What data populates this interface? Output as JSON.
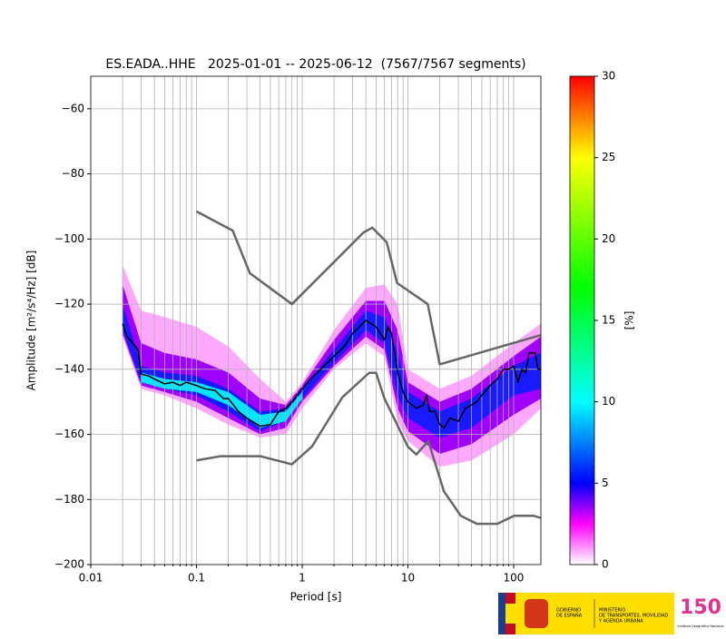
{
  "chart_data": {
    "type": "ppsd",
    "title": "ES.EADA..HHE   2025-01-01 -- 2025-06-12  (7567/7567 segments)",
    "xlabel": "Period [s]",
    "ylabel": "Amplitude [m²/s⁴/Hz] [dB]",
    "xscale": "log",
    "xlim": [
      0.01,
      181
    ],
    "ylim": [
      -200,
      -50
    ],
    "xticks": [
      0.01,
      0.1,
      1,
      10,
      100
    ],
    "xminorticks": [
      0.02,
      0.03,
      0.04,
      0.05,
      0.06,
      0.07,
      0.08,
      0.09,
      0.2,
      0.3,
      0.4,
      0.5,
      0.6,
      0.7,
      0.8,
      0.9,
      2,
      3,
      4,
      5,
      6,
      7,
      8,
      9,
      20,
      30,
      40,
      50,
      60,
      70,
      80,
      90
    ],
    "yticks": [
      {
        "value": -60,
        "label": "−60"
      },
      {
        "value": -80,
        "label": "−80"
      },
      {
        "value": -100,
        "label": "−100"
      },
      {
        "value": -120,
        "label": "−120"
      },
      {
        "value": -140,
        "label": "−140"
      },
      {
        "value": -160,
        "label": "−160"
      },
      {
        "value": -180,
        "label": "−180"
      },
      {
        "value": -200,
        "label": "−200"
      }
    ],
    "grid": true,
    "density": [
      {
        "color": "#ffa8ff",
        "x": [
          0.02,
          0.03,
          0.05,
          0.1,
          0.2,
          0.4,
          0.7,
          1,
          2,
          4,
          6,
          8,
          10,
          20,
          40,
          100,
          181
        ],
        "upper": [
          -108,
          -122,
          -124,
          -127,
          -133,
          -143,
          -150,
          -144,
          -128,
          -115,
          -114,
          -120,
          -140,
          -146,
          -142,
          -132,
          -126
        ],
        "lower": [
          -130,
          -146,
          -148,
          -152,
          -157,
          -161,
          -160,
          -152,
          -140,
          -132,
          -136,
          -156,
          -162,
          -170,
          -168,
          -160,
          -152
        ]
      },
      {
        "color": "#a000ff",
        "x": [
          0.02,
          0.03,
          0.05,
          0.1,
          0.2,
          0.4,
          0.7,
          1,
          2,
          4,
          6,
          8,
          10,
          20,
          40,
          100,
          181
        ],
        "upper": [
          -114,
          -132,
          -135,
          -137,
          -141,
          -149,
          -151,
          -145,
          -131,
          -119,
          -119,
          -128,
          -144,
          -150,
          -146,
          -136,
          -130
        ],
        "lower": [
          -129,
          -145,
          -147,
          -150,
          -155,
          -160,
          -158,
          -150,
          -139,
          -130,
          -134,
          -152,
          -159,
          -166,
          -163,
          -154,
          -149
        ]
      },
      {
        "color": "#1a1aff",
        "x": [
          0.02,
          0.03,
          0.05,
          0.1,
          0.2,
          0.4,
          0.7,
          1,
          2,
          4,
          6,
          8,
          10,
          20,
          40,
          100,
          181
        ],
        "upper": [
          -120,
          -139,
          -141,
          -142,
          -146,
          -153,
          -152,
          -146,
          -134,
          -122,
          -124,
          -135,
          -147,
          -153,
          -149,
          -139,
          -135
        ],
        "lower": [
          -128,
          -144,
          -146,
          -148,
          -153,
          -159,
          -156,
          -149,
          -138,
          -128,
          -132,
          -148,
          -155,
          -161,
          -158,
          -148,
          -146
        ]
      },
      {
        "color": "#00e5ff",
        "x": [
          0.03,
          0.05,
          0.1,
          0.2,
          0.4,
          0.7,
          1
        ],
        "upper": [
          -141,
          -143,
          -144,
          -147,
          -154,
          -153,
          -147
        ],
        "lower": [
          -144,
          -146,
          -147,
          -151,
          -158,
          -156,
          -149
        ]
      }
    ],
    "series": [
      {
        "color": "#000000",
        "width": 1.5,
        "x": [
          0.02,
          0.022,
          0.025,
          0.028,
          0.03,
          0.035,
          0.04,
          0.05,
          0.06,
          0.07,
          0.08,
          0.1,
          0.12,
          0.15,
          0.18,
          0.2,
          0.25,
          0.3,
          0.4,
          0.5,
          0.6,
          0.7,
          0.8,
          1,
          1.2,
          1.5,
          2,
          2.5,
          3,
          4,
          5,
          6,
          6.5,
          7,
          8,
          9,
          10,
          12,
          14,
          15,
          16,
          18,
          20,
          22,
          25,
          30,
          35,
          40,
          45,
          50,
          60,
          70,
          80,
          90,
          100,
          110,
          120,
          130,
          140,
          160,
          170,
          181
        ],
        "values": [
          -126,
          -130,
          -132,
          -134,
          -141.5,
          -142,
          -143,
          -144.5,
          -144,
          -145,
          -144,
          -145,
          -146,
          -146.5,
          -149,
          -149,
          -153,
          -155,
          -157.5,
          -157,
          -153,
          -152,
          -150,
          -146,
          -143,
          -140,
          -136,
          -133,
          -129,
          -125,
          -127,
          -131,
          -127,
          -129,
          -141,
          -147,
          -150,
          -152,
          -151,
          -148,
          -153,
          -153,
          -157,
          -158,
          -155,
          -156,
          -152,
          -151,
          -150,
          -148,
          -145,
          -143,
          -140,
          -140,
          -139,
          -144,
          -140,
          -141,
          -135,
          -135,
          -140,
          -140
        ]
      },
      {
        "color": "#666666",
        "width": 2.5,
        "x": [
          0.1,
          0.22,
          0.32,
          0.8,
          3.8,
          4.6,
          6.3,
          7.9,
          15.4,
          20,
          181
        ],
        "values": [
          -91.5,
          -97.4,
          -110.5,
          -120,
          -98,
          -96.5,
          -101,
          -113.5,
          -120,
          -138.5,
          -129.5
        ]
      },
      {
        "color": "#666666",
        "width": 2.5,
        "x": [
          0.1,
          0.17,
          0.4,
          0.8,
          1.24,
          2.4,
          4.3,
          5,
          6,
          10,
          12,
          15.6,
          21.9,
          31.6,
          45,
          70,
          101,
          154,
          181
        ],
        "values": [
          -168,
          -166.7,
          -166.7,
          -169.2,
          -163.7,
          -148.6,
          -141.1,
          -141.1,
          -149,
          -163.8,
          -166.2,
          -162.1,
          -177.5,
          -185,
          -187.5,
          -187.5,
          -185,
          -185,
          -185.7
        ]
      }
    ],
    "colorbar": {
      "label": "[%]",
      "lim": [
        0,
        30
      ],
      "ticks": [
        0,
        5,
        10,
        15,
        20,
        25,
        30
      ],
      "stops": [
        {
          "value": 0,
          "color": "#ffffff"
        },
        {
          "value": 2.5,
          "color": "#ff00ff"
        },
        {
          "value": 5,
          "color": "#0000ff"
        },
        {
          "value": 10,
          "color": "#00ffff"
        },
        {
          "value": 17,
          "color": "#00ff00"
        },
        {
          "value": 25,
          "color": "#ffff00"
        },
        {
          "value": 30,
          "color": "#ff0000"
        }
      ]
    }
  },
  "footer": {
    "government": [
      "GOBIERNO",
      "DE ESPAÑA"
    ],
    "ministry": [
      "MINISTERIO",
      "DE TRANSPORTES, MOVILIDAD",
      "Y AGENDA URBANA"
    ],
    "ign": "150",
    "ign_name": "Instituto Geográfico Nacional"
  }
}
